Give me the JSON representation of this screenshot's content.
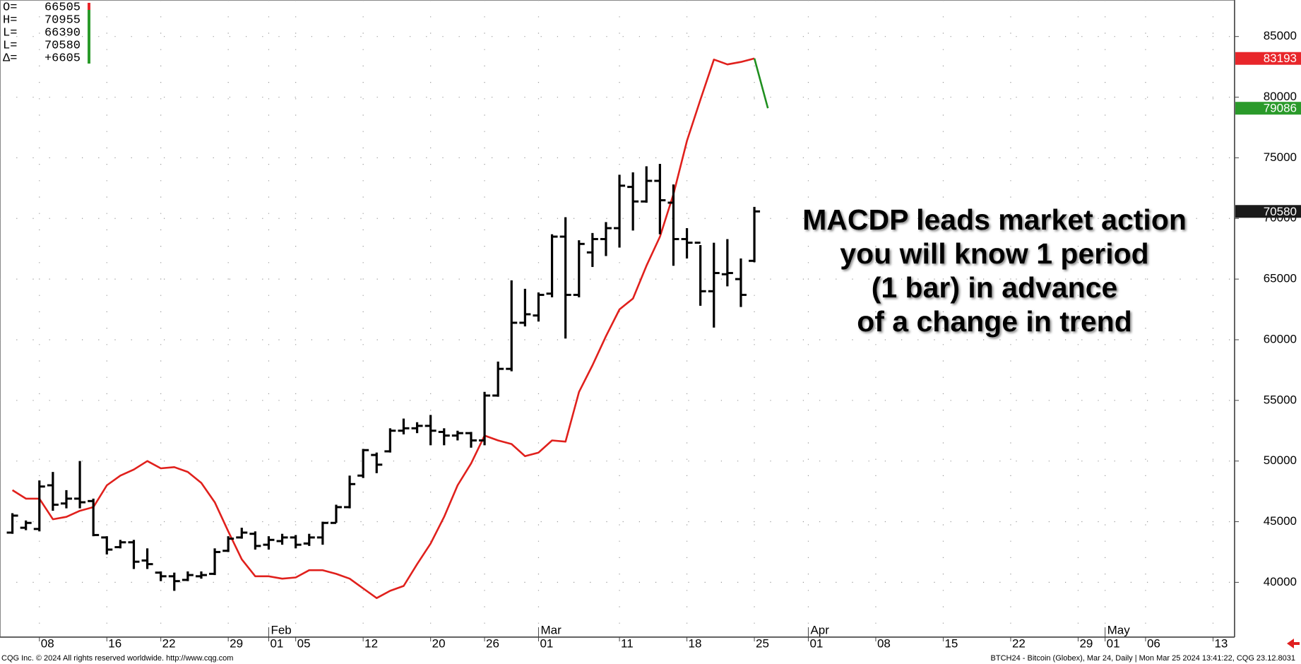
{
  "info_panel": [
    {
      "label": "O=",
      "value": 66505
    },
    {
      "label": "H=",
      "value": 70955
    },
    {
      "label": "L=",
      "value": 66390
    },
    {
      "label": "L=",
      "value": 70580
    },
    {
      "label": "Δ=",
      "value": 6605,
      "value_label": "+6605"
    }
  ],
  "chart_data": {
    "type": "ohlc",
    "xlim": [
      -2.92,
      88.6
    ],
    "xticks": [
      {
        "value": 0,
        "label": "08"
      },
      {
        "value": 5,
        "label": "16"
      },
      {
        "value": 9,
        "label": "22"
      },
      {
        "value": 14,
        "label": "29"
      },
      {
        "value": 17,
        "label": "01"
      },
      {
        "value": 19,
        "label": "05"
      },
      {
        "value": 24,
        "label": "12"
      },
      {
        "value": 29,
        "label": "20"
      },
      {
        "value": 33,
        "label": "26"
      },
      {
        "value": 37,
        "label": "01"
      },
      {
        "value": 43,
        "label": "11"
      },
      {
        "value": 48,
        "label": "18"
      },
      {
        "value": 53,
        "label": "25"
      },
      {
        "value": 57,
        "label": "01"
      },
      {
        "value": 62,
        "label": "08"
      },
      {
        "value": 67,
        "label": "15"
      },
      {
        "value": 72,
        "label": "22"
      },
      {
        "value": 77,
        "label": "29"
      },
      {
        "value": 79,
        "label": "01"
      },
      {
        "value": 82,
        "label": "06"
      },
      {
        "value": 87,
        "label": "13"
      }
    ],
    "month_ticks": [
      {
        "value": 17,
        "label": "Feb"
      },
      {
        "value": 37,
        "label": "Mar"
      },
      {
        "value": 57,
        "label": "Apr"
      },
      {
        "value": 79,
        "label": "May"
      }
    ],
    "ylim": [
      35480,
      88010
    ],
    "yticks": [
      40000,
      45000,
      50000,
      55000,
      60000,
      65000,
      70000,
      75000,
      80000,
      85000
    ],
    "grid": true,
    "ohlc": {
      "color": "#000000",
      "x": [
        -2,
        -1,
        0,
        1,
        2,
        3,
        4,
        5,
        6,
        7,
        8,
        9,
        10,
        11,
        12,
        13,
        14,
        15,
        16,
        17,
        18,
        19,
        20,
        21,
        22,
        23,
        24,
        25,
        26,
        27,
        28,
        29,
        30,
        31,
        32,
        33,
        34,
        35,
        36,
        37,
        38,
        39,
        40,
        41,
        42,
        43,
        44,
        45,
        46,
        47,
        48,
        49,
        50,
        51,
        52,
        53
      ],
      "high": [
        45700,
        45100,
        48400,
        49100,
        47600,
        50000,
        46900,
        43800,
        43500,
        43500,
        42800,
        40900,
        40800,
        40900,
        40900,
        42800,
        43800,
        44500,
        44200,
        43800,
        44000,
        43900,
        44000,
        45000,
        46400,
        48800,
        51000,
        50700,
        52700,
        53500,
        53200,
        53800,
        52700,
        52500,
        52400,
        55700,
        58200,
        64900,
        64200,
        63900,
        68700,
        70100,
        68200,
        68800,
        69700,
        73600,
        73800,
        74300,
        74500,
        72800,
        69200,
        67800,
        68000,
        68300,
        66700,
        70955
      ],
      "low": [
        44000,
        44300,
        44200,
        45900,
        46100,
        46100,
        43800,
        42300,
        42800,
        41100,
        41100,
        40100,
        39300,
        40100,
        40300,
        40600,
        42500,
        43600,
        42700,
        42700,
        43100,
        42800,
        43000,
        43100,
        44900,
        46100,
        48600,
        49000,
        50700,
        52200,
        52300,
        51300,
        51300,
        51700,
        51100,
        51300,
        55300,
        57400,
        61100,
        61500,
        63500,
        60100,
        63500,
        66000,
        66900,
        67600,
        69000,
        71300,
        68700,
        66100,
        66700,
        62800,
        61000,
        64400,
        62700,
        66390
      ],
      "open": [
        44100,
        44500,
        44400,
        48000,
        46500,
        46900,
        46700,
        43700,
        42900,
        43300,
        41800,
        40800,
        40500,
        40200,
        40500,
        40700,
        42600,
        43700,
        44000,
        43100,
        43400,
        43700,
        43200,
        43700,
        44900,
        46200,
        48800,
        50500,
        50800,
        52500,
        52700,
        52900,
        52400,
        52100,
        52300,
        51700,
        55400,
        57600,
        61400,
        62000,
        63800,
        68500,
        63700,
        67200,
        68300,
        69200,
        72600,
        71400,
        73100,
        71300,
        68300,
        68000,
        64000,
        65400,
        65000,
        66505
      ],
      "close": [
        45500,
        44900,
        47900,
        46400,
        46900,
        46600,
        43900,
        42700,
        43300,
        41700,
        41500,
        40500,
        40100,
        40600,
        40600,
        42500,
        43600,
        44100,
        43000,
        43500,
        43700,
        43100,
        43700,
        44900,
        46200,
        48100,
        50900,
        49700,
        52500,
        52700,
        52900,
        52500,
        52100,
        52300,
        51700,
        55400,
        57600,
        61400,
        62100,
        63700,
        68500,
        63700,
        67900,
        68300,
        69200,
        72700,
        71400,
        73100,
        71500,
        68300,
        68000,
        64000,
        65500,
        65500,
        63700,
        70580
      ]
    },
    "lines": [
      {
        "color": "#e0201c",
        "x": [
          -2,
          -1,
          0,
          1,
          2,
          3,
          4,
          5,
          6,
          7,
          8,
          9,
          10,
          11,
          12,
          13,
          14,
          15,
          16,
          17,
          18,
          19,
          20,
          21,
          22,
          23,
          24,
          25,
          26,
          27,
          28,
          29,
          30,
          31,
          32,
          33,
          34,
          35,
          36,
          37,
          38,
          39,
          40,
          41,
          42,
          43,
          44,
          45,
          46,
          47,
          48,
          49,
          50,
          51,
          52,
          53
        ],
        "values": [
          47600,
          46900,
          46900,
          45200,
          45400,
          45900,
          46200,
          48000,
          48800,
          49300,
          50000,
          49400,
          49500,
          49100,
          48200,
          46600,
          44200,
          41900,
          40500,
          40500,
          40300,
          40400,
          41000,
          41000,
          40700,
          40300,
          39500,
          38700,
          39300,
          39700,
          41500,
          43200,
          45400,
          48000,
          49800,
          52100,
          51700,
          51400,
          50400,
          50700,
          51700,
          51600,
          55700,
          57900,
          60300,
          62500,
          63400,
          66100,
          68500,
          72000,
          76400,
          79800,
          83100,
          82700,
          82900,
          83193
        ]
      },
      {
        "color": "#1f8f1f",
        "x": [
          53,
          54
        ],
        "values": [
          83193,
          79086
        ]
      }
    ],
    "price_markers": [
      {
        "value": 83193,
        "color": "#e8262a"
      },
      {
        "value": 79086,
        "color": "#2a9a2a"
      },
      {
        "value": 70580,
        "color": "#1a1a1a"
      }
    ],
    "annotations": [
      "MACDP leads market action",
      "you will know 1 period",
      "(1 bar)  in advance",
      "of a change in trend"
    ]
  },
  "footer": {
    "left": "CQG Inc. © 2024 All rights reserved worldwide. http://www.cqg.com",
    "right": "BTCH24 - Bitcoin (Globex), Mar 24, Daily | Mon Mar 25 2024 13:41:22, CQG 23.12.8031"
  }
}
